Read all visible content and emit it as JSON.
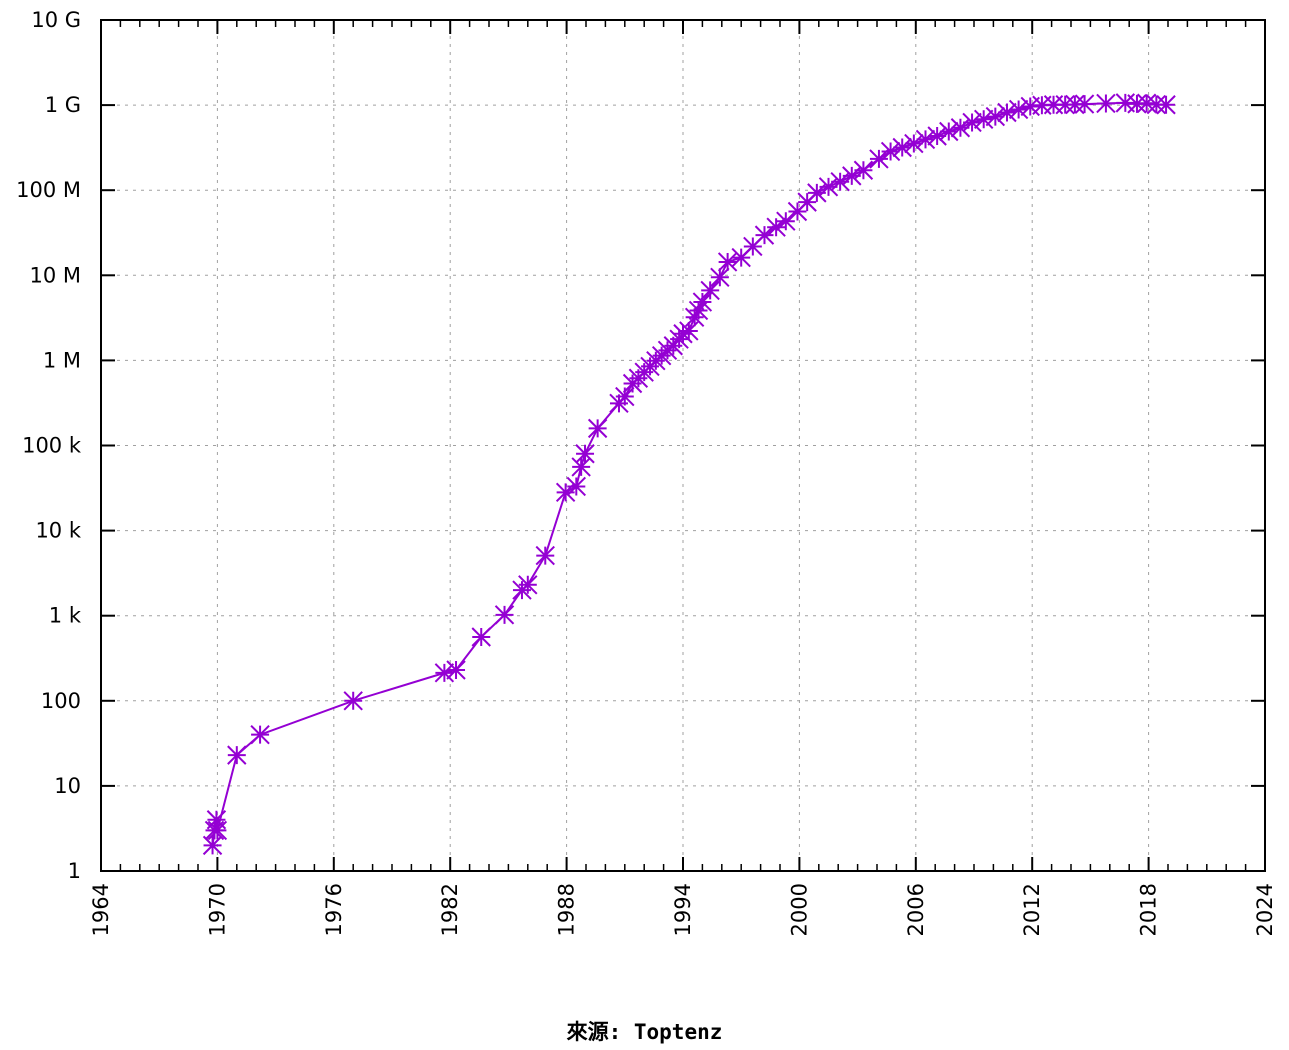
{
  "caption": "來源: Toptenz",
  "colors": {
    "series": "#9400d3",
    "grid": "#a0a0a0",
    "axis": "#000000"
  },
  "chart_data": {
    "type": "line",
    "title": "",
    "xlabel": "",
    "ylabel": "",
    "xlim": [
      1964,
      2024
    ],
    "ylim": [
      1,
      10000000000
    ],
    "y_scale": "log",
    "grid": true,
    "marker": "asterisk",
    "x_ticks": [
      1964,
      1970,
      1976,
      1982,
      1988,
      1994,
      2000,
      2006,
      2012,
      2018,
      2024
    ],
    "x_tick_labels": [
      "1964",
      "1970",
      "1976",
      "1982",
      "1988",
      "1994",
      "2000",
      "2006",
      "2012",
      "2018",
      "2024"
    ],
    "y_ticks": [
      1,
      10,
      100,
      1000,
      10000,
      100000,
      1000000,
      10000000,
      100000000,
      1000000000,
      10000000000
    ],
    "y_tick_labels": [
      "1",
      "10",
      "100",
      "1 k",
      "10 k",
      "100 k",
      "1 M",
      "10 M",
      "100 M",
      "1 G",
      "10 G"
    ],
    "series": [
      {
        "x": [
          1969.75,
          1969.85,
          1969.95,
          1970.0,
          1971.0,
          1972.2,
          1977.0,
          1981.7,
          1982.3,
          1983.6,
          1984.8,
          1985.7,
          1986.0,
          1986.9,
          1987.95,
          1988.5,
          1988.75,
          1988.95,
          1989.6,
          1990.7,
          1991.0,
          1991.4,
          1991.7,
          1992.0,
          1992.3,
          1992.6,
          1992.9,
          1993.2,
          1993.5,
          1993.8,
          1994.0,
          1994.3,
          1994.6,
          1994.8,
          1995.0,
          1995.4,
          1995.9,
          1996.3,
          1997.0,
          1997.6,
          1998.2,
          1998.8,
          1999.3,
          1999.9,
          2000.4,
          2000.9,
          2001.5,
          2002.1,
          2002.7,
          2003.3,
          2004.1,
          2004.7,
          2005.3,
          2005.9,
          2006.5,
          2007.1,
          2007.7,
          2008.3,
          2008.9,
          2009.5,
          2010.1,
          2010.7,
          2011.3,
          2011.9,
          2012.5,
          2013.1,
          2013.7,
          2014.2,
          2014.7,
          2015.8,
          2016.8,
          2017.4,
          2017.9,
          2018.4,
          2018.9
        ],
        "y": [
          2,
          3,
          4,
          3,
          23,
          40,
          100,
          213,
          230,
          562,
          1024,
          2000,
          2308,
          5089,
          28174,
          33000,
          56000,
          80000,
          159000,
          313000,
          376000,
          535000,
          617000,
          727000,
          850000,
          992000,
          1136000,
          1313000,
          1486000,
          1776000,
          2056000,
          2217000,
          3212000,
          3864000,
          4852000,
          6642000,
          9472000,
          14352000,
          16146000,
          21819000,
          29670000,
          36739000,
          43230000,
          56218000,
          72398000,
          93047000,
          109574000,
          125888000,
          147344000,
          171638000,
          233101000,
          285139000,
          317646000,
          353284000,
          394991000,
          433193000,
          489774000,
          541677000,
          625226000,
          681064000,
          732740000,
          818374000,
          888239000,
          963518000,
          996230000,
          1010000000,
          1012000000,
          1016000000,
          1028000000,
          1046000000,
          1062000000,
          1034000000,
          1051000000,
          1015000000,
          1010000000
        ]
      }
    ]
  }
}
